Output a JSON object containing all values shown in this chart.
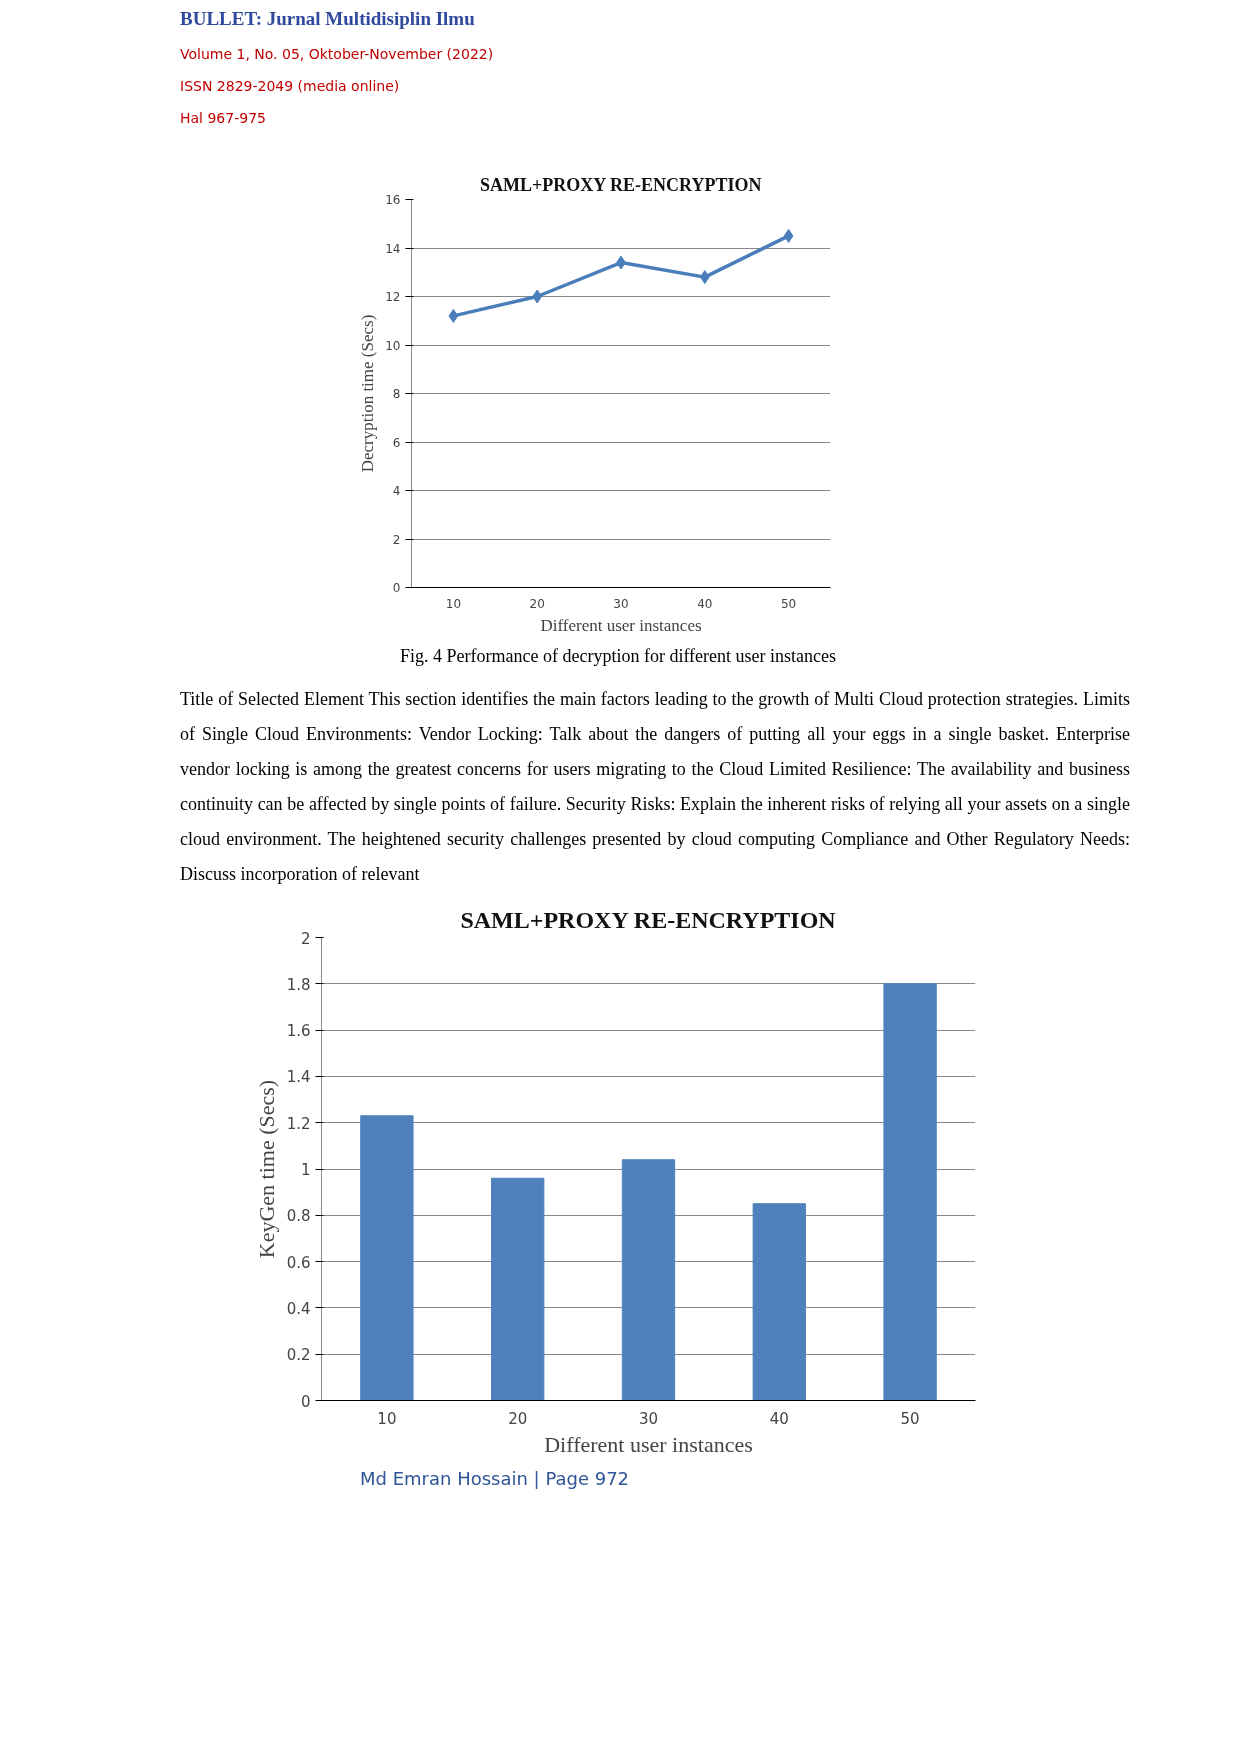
{
  "chart_data": [
    {
      "type": "line",
      "title": "SAML+PROXY RE-ENCRYPTION",
      "xlabel": "Different user instances",
      "ylabel": "Decryption time (Secs)",
      "categories": [
        "10",
        "20",
        "30",
        "40",
        "50"
      ],
      "series": [
        {
          "color": "#4a7ebb",
          "values": [
            11.2,
            12.0,
            13.4,
            12.8,
            14.5
          ]
        }
      ],
      "ylim": [
        0,
        16
      ],
      "yticks": [
        0,
        2,
        4,
        6,
        8,
        10,
        12,
        14,
        16
      ],
      "grid": "y",
      "marker": "diamond",
      "line_style": "solid",
      "annotations": [
        "BULLET: Jurnal Multidisiplin Ilmu",
        "Volume 1, No. 05, Oktober-November (2022)",
        "ISSN 2829-2049 (media online)",
        "Hal 967-975",
        "Fig. 4 Performance of decryption for different user instances"
      ]
    },
    {
      "type": "bar",
      "title": "SAML+PROXY RE-ENCRYPTION",
      "xlabel": "Different user instances",
      "ylabel": "KeyGen time (Secs)",
      "categories": [
        "10",
        "20",
        "30",
        "40",
        "50"
      ],
      "series": [
        {
          "color": "#4f81bd",
          "values": [
            1.23,
            0.96,
            1.04,
            0.85,
            1.8
          ]
        }
      ],
      "ylim": [
        0,
        2
      ],
      "yticks": [
        0,
        {
          "value": 0.2,
          "label": "0.2"
        },
        {
          "value": 0.4,
          "label": "0.4"
        },
        {
          "value": 0.6,
          "label": "0.6"
        },
        {
          "value": 0.8,
          "label": "0.8"
        },
        1,
        {
          "value": 1.2,
          "label": "1.2"
        },
        {
          "value": 1.4,
          "label": "1.4"
        },
        {
          "value": 1.6,
          "label": "1.6"
        },
        {
          "value": 1.8,
          "label": "1.8"
        },
        2
      ],
      "grid": "y",
      "annotations": [
        "Title of Selected Element This section identifies the main factors leading to the growth of Multi Cloud protection strategies. Limits of Single Cloud Environments:  Vendor Locking: Talk about the dangers of putting all your eggs in a single basket. Enterprise vendor locking is among the greatest concerns for users migrating to the Cloud Limited Resilience: The availability and business continuity can be affected by single points of failure.  Security Risks: Explain the inherent risks of relying all your assets on a single cloud environment. The heightened security challenges presented by cloud computing Compliance and Other Regulatory Needs: Discuss incorporation of relevant",
        "Md Emran Hossain | Page 972"
      ]
    }
  ]
}
